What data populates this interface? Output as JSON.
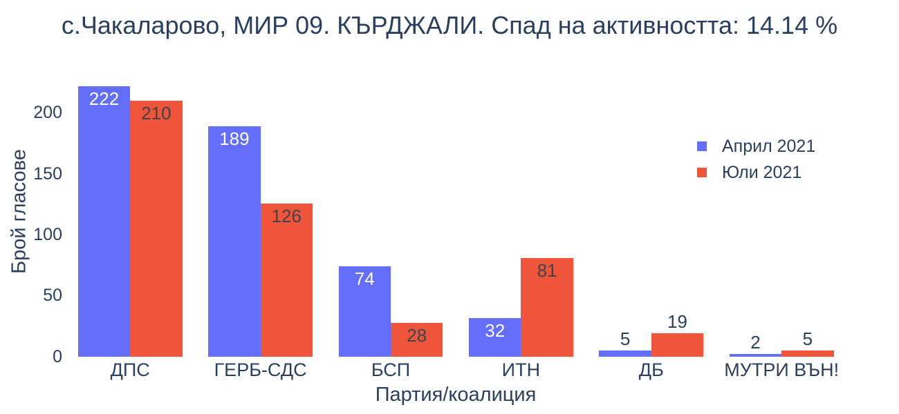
{
  "title": "с.Чакаларово, МИР 09. КЪРДЖАЛИ. Спад на активността: 14.14 %",
  "chart_data": {
    "type": "bar",
    "title": "с.Чакаларово, МИР 09. КЪРДЖАЛИ. Спад на активността: 14.14 %",
    "categories": [
      "ДПС",
      "ГЕРБ-СДС",
      "БСП",
      "ИТН",
      "ДБ",
      "МУТРИ ВЪН!"
    ],
    "series": [
      {
        "name": "Април 2021",
        "color": "#636efa",
        "values": [
          222,
          189,
          74,
          32,
          5,
          2
        ]
      },
      {
        "name": "Юли 2021",
        "color": "#ef553b",
        "values": [
          210,
          126,
          28,
          81,
          19,
          5
        ]
      }
    ],
    "xlabel": "Партия/коалиция",
    "ylabel": "Брой гласове",
    "ylim": [
      0,
      236
    ],
    "yticks": [
      0,
      50,
      100,
      150,
      200
    ],
    "grid": false,
    "legend_position": "inside-top-right",
    "bar_value_labels": true
  },
  "colors": {
    "text": "#2a3f5f",
    "series_april": "#636efa",
    "series_july": "#ef553b",
    "label_inside_blue": "#ffffff",
    "label_inside_red": "#3f444b",
    "label_outside": "#2a3f5f",
    "background": "#ffffff"
  },
  "legend": {
    "items": [
      {
        "label": "Април 2021",
        "color": "#636efa"
      },
      {
        "label": "Юли 2021",
        "color": "#ef553b"
      }
    ]
  }
}
